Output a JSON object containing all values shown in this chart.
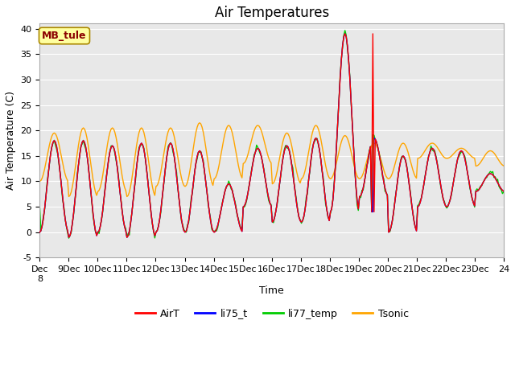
{
  "title": "Air Temperatures",
  "xlabel": "Time",
  "ylabel": "Air Temperature (C)",
  "ylim": [
    -5,
    41
  ],
  "xlim": [
    0,
    16
  ],
  "xtick_labels": [
    "Dec\n8",
    "9Dec",
    "10Dec",
    "11Dec",
    "12Dec",
    "13Dec",
    "14Dec",
    "15Dec",
    "16Dec",
    "17Dec",
    "18Dec",
    "19Dec",
    "20Dec",
    "21Dec",
    "22Dec",
    "23Dec",
    "24"
  ],
  "ytick_positions": [
    -5,
    0,
    5,
    10,
    15,
    20,
    25,
    30,
    35,
    40
  ],
  "background_color": "#ffffff",
  "plot_bg_color": "#e8e8e8",
  "annotation_text": "MB_tule",
  "annotation_color": "#8b0000",
  "annotation_bg": "#ffffa0",
  "legend_entries": [
    "AirT",
    "li75_t",
    "li77_temp",
    "Tsonic"
  ],
  "line_colors": [
    "red",
    "blue",
    "#00cc00",
    "orange"
  ],
  "grid_color": "#ffffff",
  "title_fontsize": 12,
  "label_fontsize": 9,
  "tick_fontsize": 8
}
